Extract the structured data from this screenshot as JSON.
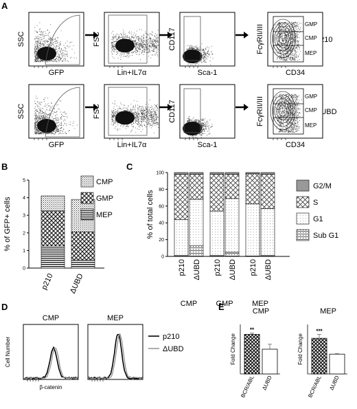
{
  "panelA": {
    "letter": "A",
    "plots": [
      {
        "ylabel": "SSC",
        "xlabel": "GFP"
      },
      {
        "ylabel": "FSC",
        "xlabel": "Lin+IL7α"
      },
      {
        "ylabel": "CD117",
        "xlabel": "Sca-1"
      },
      {
        "ylabel": "FcγRII/III",
        "xlabel": "CD34",
        "gates": [
          "GMP",
          "CMP",
          "MEP"
        ]
      }
    ],
    "rows": [
      "p210",
      "ΔUBD"
    ]
  },
  "panelB": {
    "letter": "B",
    "chart_data": {
      "type": "bar",
      "stacked": true,
      "ylabel": "% of GFP+ cells",
      "ylim": [
        0,
        5
      ],
      "yticks": [
        0,
        1,
        2,
        3,
        4,
        5
      ],
      "categories": [
        "p210",
        "ΔUBD"
      ],
      "series": [
        {
          "name": "MEP",
          "values": [
            1.25,
            0.45
          ]
        },
        {
          "name": "GMP",
          "values": [
            2.0,
            1.6
          ]
        },
        {
          "name": "CMP",
          "values": [
            0.85,
            1.85
          ]
        }
      ],
      "legend": [
        "CMP",
        "GMP",
        "MEP"
      ]
    }
  },
  "panelC": {
    "letter": "C",
    "chart_data": {
      "type": "bar",
      "stacked": true,
      "ylabel": "% of total cells",
      "ylim": [
        0,
        100
      ],
      "yticks": [
        0,
        20,
        40,
        60,
        80,
        100
      ],
      "groups": [
        "CMP",
        "GMP",
        "MEP"
      ],
      "categories": [
        "p210",
        "ΔUBD",
        "p210",
        "ΔUBD",
        "p210",
        "ΔUBD"
      ],
      "series": [
        {
          "name": "Sub G1",
          "values": [
            1,
            13,
            1,
            5,
            0.5,
            1
          ]
        },
        {
          "name": "G1",
          "values": [
            43,
            55,
            53,
            64,
            62,
            56
          ]
        },
        {
          "name": "S",
          "values": [
            54,
            30,
            44,
            29,
            36,
            41
          ]
        },
        {
          "name": "G2/M",
          "values": [
            2,
            2,
            2,
            2,
            1.5,
            2
          ]
        }
      ],
      "legend": [
        "G2/M",
        "S",
        "G1",
        "Sub G1"
      ]
    }
  },
  "panelD": {
    "letter": "D",
    "ylabel": "Cell Number",
    "xlabel": "β-catenin",
    "plots": [
      "CMP",
      "MEP"
    ],
    "legend": [
      "p210",
      "ΔUBD"
    ]
  },
  "panelE": {
    "letter": "E",
    "chart_data": [
      {
        "type": "bar",
        "title": "CMP",
        "ylabel": "Fold Change",
        "ylim": [
          0,
          2.0
        ],
        "categories": [
          "BCR/ABL",
          "ΔUBD"
        ],
        "values": [
          1.6,
          1.0
        ],
        "errors": [
          0.05,
          0.2
        ],
        "annotation": "**"
      },
      {
        "type": "bar",
        "title": "MEP",
        "ylabel": "Fold Change",
        "ylim": [
          0,
          2.5
        ],
        "categories": [
          "BCR/ABL",
          "ΔUBD"
        ],
        "values": [
          1.8,
          1.0
        ],
        "errors": [
          0.2,
          0.03
        ],
        "annotation": "***"
      }
    ]
  }
}
